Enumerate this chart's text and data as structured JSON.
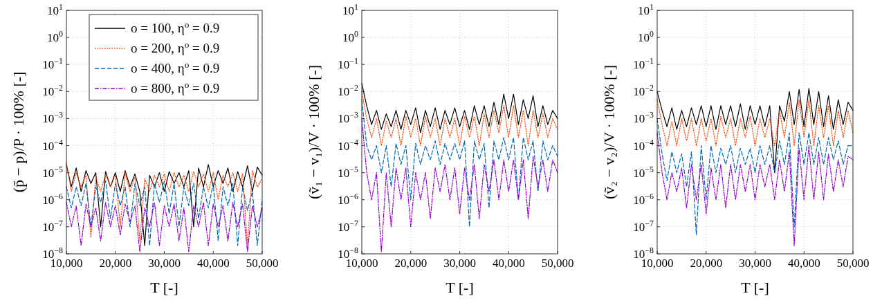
{
  "chart_data": [
    {
      "type": "line",
      "xlabel": "T [-]",
      "ylabel": "(p̃ − p)/P · 100% [-]",
      "log": "y",
      "grid": true,
      "legend": "top right",
      "x": [
        10000,
        11000,
        12000,
        13000,
        14000,
        15000,
        16000,
        17000,
        18000,
        19000,
        20000,
        21000,
        22000,
        23000,
        24000,
        25000,
        26000,
        27000,
        28000,
        29000,
        30000,
        31000,
        32000,
        33000,
        34000,
        35000,
        36000,
        37000,
        38000,
        39000,
        40000,
        41000,
        42000,
        43000,
        44000,
        45000,
        46000,
        47000,
        48000,
        49000,
        50000
      ],
      "xlim": [
        10000,
        50000
      ],
      "xticks": [
        {
          "value": 10000,
          "label": "10,000"
        },
        {
          "value": 20000,
          "label": "20,000"
        },
        {
          "value": 30000,
          "label": "30,000"
        },
        {
          "value": 40000,
          "label": "40,000"
        },
        {
          "value": 50000,
          "label": "50,000"
        }
      ],
      "ylim": [
        1e-08,
        10
      ],
      "yticks": [
        {
          "value": 1e-08,
          "label": "10$^{−8}$"
        },
        {
          "value": 1e-07,
          "label": "10$^{−7}$"
        },
        {
          "value": 1e-06,
          "label": "10$^{−6}$"
        },
        {
          "value": 1e-05,
          "label": "10$^{−5}$"
        },
        {
          "value": 0.0001,
          "label": "10$^{−4}$"
        },
        {
          "value": 0.001,
          "label": "10$^{−3}$"
        },
        {
          "value": 0.01,
          "label": "10$^{−2}$"
        },
        {
          "value": 0.1,
          "label": "10$^{−1}$"
        },
        {
          "value": 1,
          "label": "10$^{0}$"
        },
        {
          "value": 10,
          "label": "10$^{1}$"
        }
      ],
      "series": [
        {
          "name": "o = 100, η$^{o}$ = 0.9",
          "color": "#000000",
          "line_style": "solid",
          "values": [
            2e-05,
            3e-06,
            1.5e-05,
            2e-06,
            1.2e-05,
            4e-06,
            1e-05,
            1e-07,
            1.1e-05,
            3e-06,
            1e-05,
            2e-06,
            1.2e-05,
            3e-06,
            9e-06,
            2e-06,
            2e-08,
            8e-06,
            3e-06,
            1e-05,
            2e-06,
            1.1e-05,
            4e-06,
            1e-05,
            3e-06,
            1.2e-05,
            1e-07,
            1.5e-05,
            3e-06,
            2e-05,
            3e-06,
            1.2e-05,
            4e-06,
            1.5e-05,
            2e-06,
            1.1e-05,
            3e-06,
            1.8e-05,
            2e-06,
            1.6e-05,
            8e-06
          ]
        },
        {
          "name": "o = 200, η$^{o}$ = 0.9",
          "color": "#ff4500",
          "line_style": "dotted",
          "values": [
            2.5e-05,
            2e-06,
            1e-05,
            3e-06,
            8e-06,
            4e-08,
            7e-06,
            2e-06,
            9e-06,
            3e-06,
            8e-06,
            1e-07,
            1e-05,
            2e-06,
            7e-06,
            3e-08,
            6e-06,
            2e-06,
            8e-06,
            3e-06,
            9e-06,
            2e-06,
            1e-05,
            3e-06,
            8e-06,
            2e-06,
            1.1e-05,
            3e-06,
            9e-06,
            2e-06,
            1e-05,
            1e-06,
            8e-06,
            3e-06,
            1e-05,
            2e-06,
            9e-06,
            2e-08,
            1.2e-05,
            3e-06,
            6e-06
          ]
        },
        {
          "name": "o = 400, η$^{o}$ = 0.9",
          "color": "#0066b3",
          "line_style": "dashed",
          "values": [
            3e-06,
            5e-07,
            3e-06,
            6e-07,
            4e-06,
            1e-07,
            3e-06,
            8e-07,
            5e-06,
            2e-07,
            4e-06,
            6e-07,
            3e-06,
            1e-07,
            4e-06,
            6e-07,
            3e-06,
            2e-08,
            4e-06,
            8e-07,
            5e-06,
            3e-07,
            4e-06,
            1e-07,
            3e-06,
            6e-07,
            4e-06,
            2e-07,
            3e-06,
            5e-07,
            4e-06,
            3e-08,
            3e-06,
            6e-07,
            4e-06,
            2e-08,
            3e-06,
            4e-07,
            2e-06,
            2e-08,
            1e-06
          ]
        },
        {
          "name": "o = 800, η$^{o}$ = 0.9",
          "color": "#9400d3",
          "line_style": "dashdot",
          "values": [
            8e-07,
            1e-07,
            6e-07,
            2e-08,
            7e-07,
            1e-07,
            5e-07,
            3e-08,
            8e-07,
            1e-07,
            6e-07,
            5e-08,
            7e-07,
            1.5e-07,
            6e-07,
            1.2e-08,
            5e-07,
            1e-07,
            8e-07,
            2e-08,
            6e-07,
            1e-07,
            7e-07,
            3e-08,
            5e-07,
            1.2e-08,
            6e-07,
            1e-07,
            8e-07,
            2e-08,
            7e-07,
            1e-07,
            6e-07,
            3e-08,
            8e-07,
            1e-07,
            7e-07,
            1.2e-08,
            6e-07,
            1e-07,
            5e-07
          ]
        }
      ]
    },
    {
      "type": "line",
      "xlabel": "T [-]",
      "ylabel": "(ṽ₁ − v₁)/V · 100% [-]",
      "log": "y",
      "grid": true,
      "x": [
        10000,
        11000,
        12000,
        13000,
        14000,
        15000,
        16000,
        17000,
        18000,
        19000,
        20000,
        21000,
        22000,
        23000,
        24000,
        25000,
        26000,
        27000,
        28000,
        29000,
        30000,
        31000,
        32000,
        33000,
        34000,
        35000,
        36000,
        37000,
        38000,
        39000,
        40000,
        41000,
        42000,
        43000,
        44000,
        45000,
        46000,
        47000,
        48000,
        49000,
        50000
      ],
      "xlim": [
        10000,
        50000
      ],
      "xticks": [
        {
          "value": 10000,
          "label": "10,000"
        },
        {
          "value": 20000,
          "label": "20,000"
        },
        {
          "value": 30000,
          "label": "30,000"
        },
        {
          "value": 40000,
          "label": "40,000"
        },
        {
          "value": 50000,
          "label": "50,000"
        }
      ],
      "ylim": [
        1e-08,
        10
      ],
      "yticks": [
        {
          "value": 1e-08,
          "label": "10$^{−8}$"
        },
        {
          "value": 1e-07,
          "label": "10$^{−7}$"
        },
        {
          "value": 1e-06,
          "label": "10$^{−6}$"
        },
        {
          "value": 1e-05,
          "label": "10$^{−5}$"
        },
        {
          "value": 0.0001,
          "label": "10$^{−4}$"
        },
        {
          "value": 0.001,
          "label": "10$^{−3}$"
        },
        {
          "value": 0.01,
          "label": "10$^{−2}$"
        },
        {
          "value": 0.1,
          "label": "10$^{−1}$"
        },
        {
          "value": 1,
          "label": "10$^{0}$"
        },
        {
          "value": 10,
          "label": "10$^{1}$"
        }
      ],
      "series": [
        {
          "color": "#000000",
          "line_style": "solid",
          "values": [
            0.02,
            0.003,
            0.0006,
            0.002,
            0.0004,
            0.0015,
            0.0005,
            0.002,
            0.0004,
            0.002,
            0.0006,
            0.0025,
            0.0003,
            0.002,
            0.0005,
            0.0025,
            0.0004,
            0.002,
            0.0006,
            0.0025,
            0.0005,
            0.002,
            0.0004,
            0.003,
            0.0006,
            0.003,
            0.0005,
            0.004,
            0.0006,
            0.008,
            0.001,
            0.008,
            0.0006,
            0.005,
            0.001,
            0.007,
            0.0005,
            0.003,
            0.0006,
            0.002,
            0.001
          ]
        },
        {
          "color": "#ff4500",
          "line_style": "dotted",
          "values": [
            0.01,
            0.001,
            0.0002,
            0.001,
            0.0001,
            0.0008,
            0.0002,
            0.001,
            0.0001,
            0.0012,
            0.0002,
            0.001,
            0.0001,
            0.0012,
            0.0002,
            0.001,
            0.0001,
            0.001,
            0.0002,
            0.001,
            0.0001,
            0.0012,
            0.0002,
            0.0012,
            0.0001,
            0.0015,
            0.0002,
            0.002,
            0.0003,
            0.003,
            0.0002,
            0.003,
            0.0002,
            0.002,
            0.0001,
            0.002,
            0.0002,
            0.0015,
            0.0002,
            0.001,
            0.0004
          ]
        },
        {
          "color": "#0066b3",
          "line_style": "dashed",
          "values": [
            0.005,
            0.0001,
            3e-05,
            0.0001,
            1e-05,
            0.0001,
            3e-06,
            0.00012,
            2e-05,
            0.0001,
            1e-06,
            0.00012,
            2e-05,
            0.0001,
            3e-05,
            0.00015,
            2e-05,
            0.00012,
            3e-05,
            0.00012,
            3e-05,
            0.00015,
            1e-07,
            0.00015,
            3e-05,
            0.00012,
            5e-07,
            0.00015,
            3e-05,
            0.0002,
            3e-05,
            0.0002,
            1e-06,
            0.0002,
            3e-05,
            0.00015,
            2e-06,
            0.00015,
            3e-05,
            0.0001,
            4e-05
          ]
        },
        {
          "color": "#9400d3",
          "line_style": "dashdot",
          "values": [
            0.001,
            1e-05,
            1e-06,
            1e-05,
            1.2e-08,
            1e-05,
            1e-07,
            1.5e-05,
            1e-06,
            1.5e-05,
            1e-07,
            1e-05,
            1e-06,
            1e-05,
            2e-07,
            1.5e-05,
            2e-06,
            2e-05,
            1e-06,
            1.5e-05,
            3e-07,
            1.5e-05,
            1e-06,
            2e-05,
            2e-07,
            2e-05,
            2e-06,
            3e-05,
            1e-06,
            3e-05,
            2e-06,
            3e-05,
            1e-06,
            3e-05,
            2e-07,
            4e-05,
            3e-06,
            3e-05,
            2e-06,
            3e-05,
            1e-05
          ]
        }
      ]
    },
    {
      "type": "line",
      "xlabel": "T [-]",
      "ylabel": "(ṽ₂ − v₂)/V · 100% [-]",
      "log": "y",
      "grid": true,
      "x": [
        10000,
        11000,
        12000,
        13000,
        14000,
        15000,
        16000,
        17000,
        18000,
        19000,
        20000,
        21000,
        22000,
        23000,
        24000,
        25000,
        26000,
        27000,
        28000,
        29000,
        30000,
        31000,
        32000,
        33000,
        34000,
        35000,
        36000,
        37000,
        38000,
        39000,
        40000,
        41000,
        42000,
        43000,
        44000,
        45000,
        46000,
        47000,
        48000,
        49000,
        50000
      ],
      "xlim": [
        10000,
        50000
      ],
      "xticks": [
        {
          "value": 10000,
          "label": "10,000"
        },
        {
          "value": 20000,
          "label": "20,000"
        },
        {
          "value": 30000,
          "label": "30,000"
        },
        {
          "value": 40000,
          "label": "40,000"
        },
        {
          "value": 50000,
          "label": "50,000"
        }
      ],
      "ylim": [
        1e-08,
        10
      ],
      "yticks": [
        {
          "value": 1e-08,
          "label": "10$^{−8}$"
        },
        {
          "value": 1e-07,
          "label": "10$^{−7}$"
        },
        {
          "value": 1e-06,
          "label": "10$^{−6}$"
        },
        {
          "value": 1e-05,
          "label": "10$^{−5}$"
        },
        {
          "value": 0.0001,
          "label": "10$^{−4}$"
        },
        {
          "value": 0.001,
          "label": "10$^{−3}$"
        },
        {
          "value": 0.01,
          "label": "10$^{−2}$"
        },
        {
          "value": 0.1,
          "label": "10$^{−1}$"
        },
        {
          "value": 1,
          "label": "10$^{0}$"
        },
        {
          "value": 10,
          "label": "10$^{1}$"
        }
      ],
      "series": [
        {
          "color": "#000000",
          "line_style": "solid",
          "values": [
            0.01,
            0.002,
            0.0005,
            0.0025,
            0.0004,
            0.002,
            0.0005,
            0.0025,
            0.0006,
            0.003,
            0.0005,
            0.003,
            0.0004,
            0.003,
            0.0006,
            0.003,
            0.0005,
            0.0035,
            0.0004,
            0.003,
            0.0006,
            0.003,
            0.0005,
            0.003,
            1e-05,
            0.003,
            0.0008,
            0.01,
            0.0006,
            0.012,
            0.0005,
            0.013,
            0.0006,
            0.01,
            0.0005,
            0.007,
            0.0004,
            0.005,
            0.0006,
            0.004,
            0.002
          ]
        },
        {
          "color": "#ff4500",
          "line_style": "dotted",
          "values": [
            0.005,
            0.0006,
            0.0001,
            0.0008,
            0.0001,
            0.001,
            0.00015,
            0.001,
            0.0001,
            0.001,
            0.00015,
            0.001,
            0.0001,
            0.0012,
            0.0002,
            0.001,
            0.0001,
            0.001,
            0.0002,
            0.0012,
            0.0001,
            0.001,
            0.0002,
            0.001,
            0.0001,
            0.002,
            0.0002,
            0.004,
            0.0001,
            0.005,
            0.0002,
            0.005,
            0.0001,
            0.003,
            0.0002,
            0.003,
            0.0001,
            0.002,
            0.0002,
            0.002,
            0.0003
          ]
        },
        {
          "color": "#0066b3",
          "line_style": "dashed",
          "values": [
            0.001,
            5e-05,
            5e-06,
            6e-05,
            1e-05,
            5e-05,
            3e-06,
            6e-05,
            5e-08,
            0.0001,
            1e-06,
            0.0001,
            1e-05,
            8e-05,
            2e-05,
            0.0001,
            1e-05,
            8e-05,
            2e-05,
            8e-05,
            1e-05,
            0.0001,
            2e-05,
            0.0001,
            1e-05,
            0.00015,
            2e-05,
            0.0003,
            1e-07,
            0.0003,
            2e-05,
            0.0003,
            2e-05,
            0.0002,
            2e-05,
            0.0002,
            3e-05,
            0.00015,
            2e-05,
            0.0001,
            0.0001
          ]
        },
        {
          "color": "#9400d3",
          "line_style": "dashdot",
          "values": [
            0.0003,
            1e-05,
            1e-06,
            1e-05,
            2e-06,
            1.5e-05,
            5e-07,
            2e-05,
            1e-06,
            2e-05,
            3e-07,
            1.5e-05,
            1e-06,
            2e-05,
            5e-07,
            2e-05,
            1e-06,
            2e-05,
            2e-06,
            2e-05,
            1e-06,
            2e-05,
            3e-06,
            2e-05,
            1e-06,
            3e-05,
            2e-06,
            6e-05,
            2e-08,
            8e-05,
            1e-06,
            0.0001,
            1e-06,
            6e-05,
            1e-06,
            5e-05,
            2e-06,
            3e-05,
            3e-06,
            4e-05,
            3e-05
          ]
        }
      ]
    }
  ]
}
